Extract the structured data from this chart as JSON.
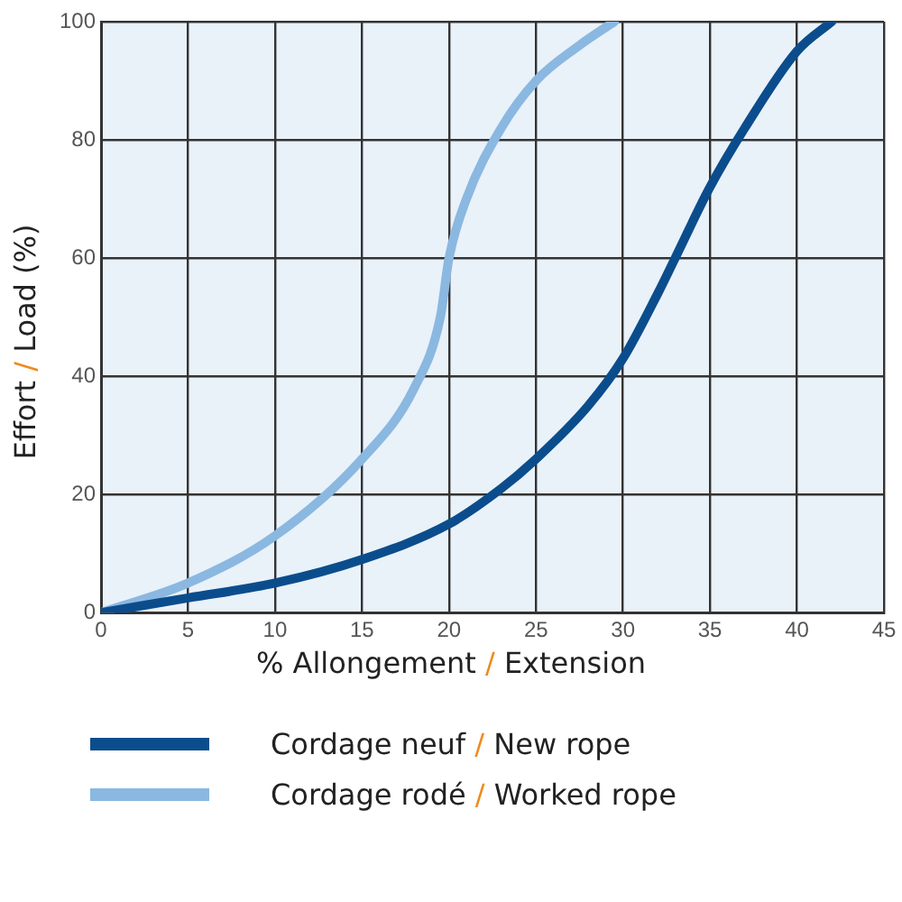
{
  "chart_data": {
    "type": "line",
    "xlabel": "% Allongement / Extension",
    "ylabel": "Effort / Load (%)",
    "series": [
      {
        "name": "Cordage neuf / New rope",
        "color": "#0b4d8c",
        "x": [
          0,
          5,
          10,
          15,
          20,
          23,
          25,
          28,
          30,
          32,
          33,
          35,
          37,
          40,
          42
        ],
        "values": [
          0,
          2.5,
          5,
          9,
          15,
          21,
          26,
          35,
          43,
          54,
          60,
          72,
          82,
          95,
          100
        ]
      },
      {
        "name": "Cordage rodé / Worked rope",
        "color": "#8ab8e0",
        "x": [
          0,
          5,
          10,
          15,
          18,
          19.5,
          20,
          21,
          23,
          25,
          27.5,
          29.5
        ],
        "values": [
          0,
          5,
          13,
          26,
          38,
          50,
          60,
          70,
          82,
          90,
          96,
          100
        ]
      }
    ],
    "xlim": [
      0,
      45
    ],
    "xticks": [
      0,
      5,
      10,
      15,
      20,
      25,
      30,
      35,
      40,
      45
    ],
    "ylim": [
      0,
      100
    ],
    "yticks": [
      0,
      20,
      40,
      60,
      80,
      100
    ],
    "grid": true,
    "legend": "bottom",
    "marker": "none",
    "line_style": "solid"
  }
}
